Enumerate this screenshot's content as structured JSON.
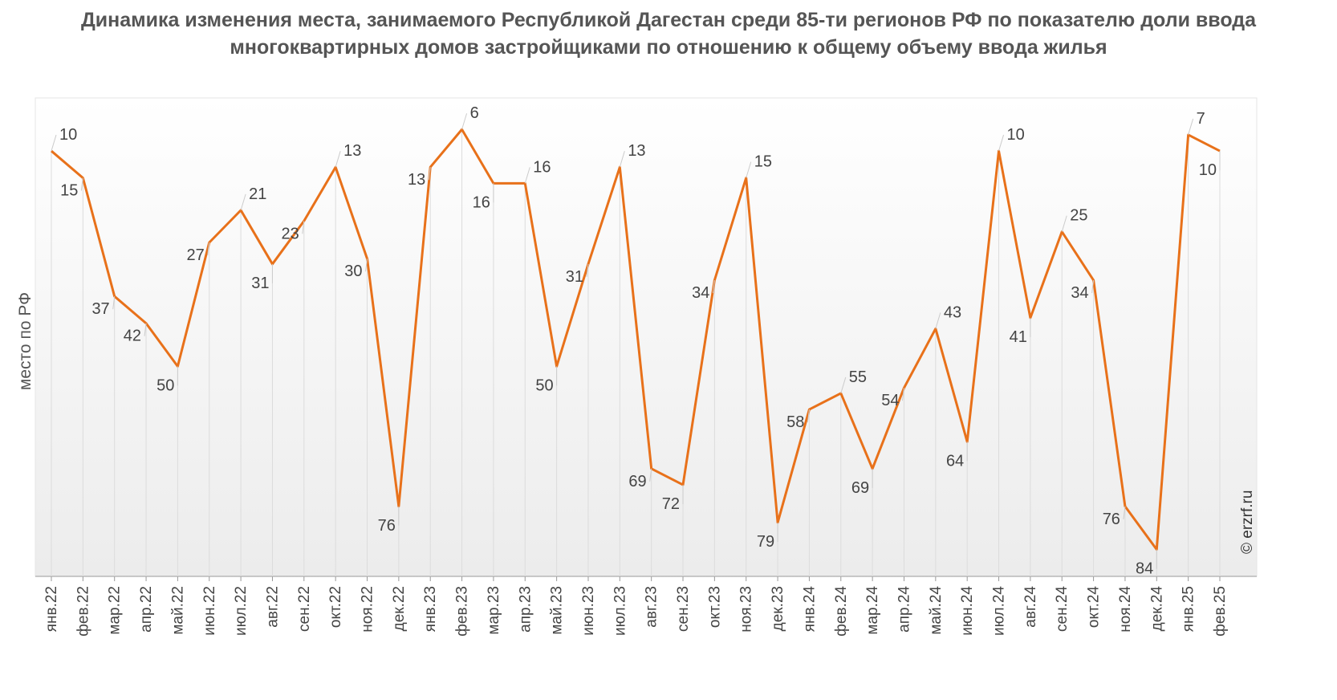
{
  "chart_data": {
    "type": "line",
    "title": "Динамика изменения места, занимаемого Республикой Дагестан среди 85-ти регионов РФ по показателю доли ввода многоквартирных домов застройщиками по отношению к общему объему ввода жилья",
    "ylabel": "место по РФ",
    "xlabel": "",
    "y_inverted": true,
    "ylim": [
      0,
      89
    ],
    "grid": "vertical",
    "watermark": "© erzrf.ru",
    "line_color": "#e8711a",
    "categories": [
      "янв.22",
      "фев.22",
      "мар.22",
      "апр.22",
      "май.22",
      "июн.22",
      "июл.22",
      "авг.22",
      "сен.22",
      "окт.22",
      "ноя.22",
      "дек.22",
      "янв.23",
      "фев.23",
      "мар.23",
      "апр.23",
      "май.23",
      "июн.23",
      "июл.23",
      "авг.23",
      "сен.23",
      "окт.23",
      "ноя.23",
      "дек.23",
      "янв.24",
      "фев.24",
      "мар.24",
      "апр.24",
      "май.24",
      "июн.24",
      "июл.24",
      "авг.24",
      "сен.24",
      "окт.24",
      "ноя.24",
      "дек.24",
      "янв.25",
      "фев.25"
    ],
    "values": [
      10,
      15,
      37,
      42,
      50,
      27,
      21,
      31,
      23,
      13,
      30,
      76,
      13,
      6,
      16,
      16,
      50,
      31,
      13,
      69,
      72,
      34,
      15,
      79,
      58,
      55,
      69,
      54,
      43,
      64,
      10,
      41,
      25,
      34,
      76,
      84,
      7,
      10
    ]
  }
}
